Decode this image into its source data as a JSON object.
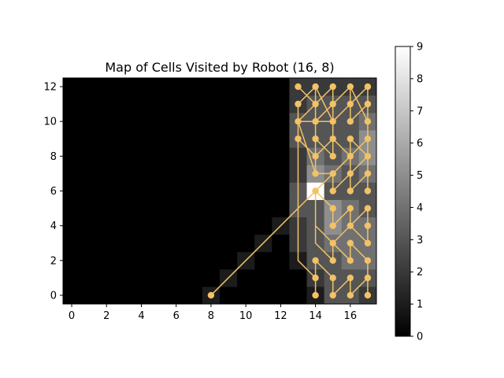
{
  "chart_data": {
    "type": "heatmap",
    "title": "Map of Cells Visited by Robot (16, 8)",
    "xlabel": "",
    "ylabel": "",
    "xlim": [
      -0.5,
      17.5
    ],
    "ylim": [
      -0.5,
      12.5
    ],
    "x_ticks": [
      0,
      2,
      4,
      6,
      8,
      10,
      12,
      14,
      16
    ],
    "y_ticks": [
      0,
      2,
      4,
      6,
      8,
      10,
      12
    ],
    "colorbar": {
      "min": 0,
      "max": 9,
      "ticks": [
        0,
        1,
        2,
        3,
        4,
        5,
        6,
        7,
        8,
        9
      ],
      "colormap": "gray"
    },
    "grid": false,
    "rows": 13,
    "cols": 18,
    "values": [
      [
        0,
        0,
        0,
        0,
        0,
        0,
        0,
        0,
        1,
        0,
        0,
        0,
        0,
        0,
        1,
        3,
        3,
        2
      ],
      [
        0,
        0,
        0,
        0,
        0,
        0,
        0,
        0,
        0,
        1,
        0,
        0,
        0,
        0,
        2,
        3,
        3,
        3
      ],
      [
        0,
        0,
        0,
        0,
        0,
        0,
        0,
        0,
        0,
        0,
        1,
        0,
        0,
        1,
        3,
        3,
        4,
        4
      ],
      [
        0,
        0,
        0,
        0,
        0,
        0,
        0,
        0,
        0,
        0,
        0,
        1,
        0,
        2,
        3,
        4,
        4,
        4
      ],
      [
        0,
        0,
        0,
        0,
        0,
        0,
        0,
        0,
        0,
        0,
        0,
        0,
        1,
        2,
        3,
        5,
        4,
        4
      ],
      [
        0,
        0,
        0,
        0,
        0,
        0,
        0,
        0,
        0,
        0,
        0,
        0,
        0,
        3,
        3,
        5,
        4,
        3
      ],
      [
        0,
        0,
        0,
        0,
        0,
        0,
        0,
        0,
        0,
        0,
        0,
        0,
        0,
        3,
        9,
        3,
        3,
        3
      ],
      [
        0,
        0,
        0,
        0,
        0,
        0,
        0,
        0,
        0,
        0,
        0,
        0,
        0,
        2,
        5,
        4,
        3,
        4
      ],
      [
        0,
        0,
        0,
        0,
        0,
        0,
        0,
        0,
        0,
        0,
        0,
        0,
        0,
        2,
        4,
        3,
        4,
        5
      ],
      [
        0,
        0,
        0,
        0,
        0,
        0,
        0,
        0,
        0,
        0,
        0,
        0,
        0,
        3,
        3,
        3,
        3,
        5
      ],
      [
        0,
        0,
        0,
        0,
        0,
        0,
        0,
        0,
        0,
        0,
        0,
        0,
        0,
        3,
        3,
        3,
        3,
        4
      ],
      [
        0,
        0,
        0,
        0,
        0,
        0,
        0,
        0,
        0,
        0,
        0,
        0,
        0,
        2,
        3,
        3,
        3,
        3
      ],
      [
        0,
        0,
        0,
        0,
        0,
        0,
        0,
        0,
        0,
        0,
        0,
        0,
        0,
        2,
        2,
        2,
        2,
        2
      ]
    ],
    "path_color": "#f2c266",
    "path": [
      [
        8,
        0
      ],
      [
        17,
        9
      ],
      [
        17,
        12
      ],
      [
        16,
        11
      ],
      [
        16,
        12
      ],
      [
        15,
        11
      ],
      [
        15,
        12
      ],
      [
        14,
        11
      ],
      [
        14,
        12
      ],
      [
        13,
        11
      ],
      [
        13,
        10
      ],
      [
        13,
        9
      ],
      [
        13,
        2
      ],
      [
        14,
        1
      ],
      [
        14,
        0
      ],
      [
        14,
        2
      ],
      [
        15,
        1
      ],
      [
        15,
        0
      ],
      [
        16,
        1
      ],
      [
        16,
        0
      ],
      [
        17,
        1
      ],
      [
        17,
        0
      ],
      [
        17,
        2
      ],
      [
        16,
        3
      ],
      [
        16,
        2
      ],
      [
        15,
        3
      ],
      [
        15,
        2
      ],
      [
        14,
        3
      ],
      [
        14,
        6
      ],
      [
        15,
        5
      ],
      [
        15,
        4
      ],
      [
        16,
        5
      ],
      [
        16,
        4
      ],
      [
        17,
        5
      ],
      [
        17,
        4
      ],
      [
        17,
        3
      ],
      [
        16,
        4
      ],
      [
        15,
        3
      ],
      [
        14,
        4
      ],
      [
        14,
        6
      ],
      [
        15,
        7
      ],
      [
        15,
        6
      ],
      [
        16,
        7
      ],
      [
        16,
        6
      ],
      [
        17,
        7
      ],
      [
        17,
        6
      ],
      [
        17,
        8
      ],
      [
        16,
        9
      ],
      [
        16,
        8
      ],
      [
        15,
        9
      ],
      [
        15,
        8
      ],
      [
        14,
        9
      ],
      [
        14,
        8
      ],
      [
        13,
        9
      ],
      [
        13,
        10
      ],
      [
        14,
        11
      ],
      [
        14,
        10
      ],
      [
        15,
        11
      ],
      [
        15,
        10
      ],
      [
        16,
        11
      ],
      [
        16,
        10
      ],
      [
        17,
        11
      ],
      [
        17,
        10
      ],
      [
        16,
        12
      ],
      [
        15,
        11
      ],
      [
        15,
        10
      ],
      [
        14,
        12
      ],
      [
        14,
        11
      ],
      [
        13,
        12
      ],
      [
        14,
        11
      ],
      [
        14,
        7
      ],
      [
        13,
        10
      ],
      [
        14,
        10
      ],
      [
        15,
        10
      ],
      [
        15,
        9
      ],
      [
        14,
        8
      ],
      [
        14,
        7
      ],
      [
        15,
        7
      ],
      [
        16,
        8
      ],
      [
        16,
        7
      ],
      [
        17,
        8
      ],
      [
        17,
        9
      ]
    ],
    "markers": [
      [
        8,
        0
      ],
      [
        13,
        12
      ],
      [
        14,
        12
      ],
      [
        15,
        12
      ],
      [
        16,
        12
      ],
      [
        17,
        12
      ],
      [
        13,
        11
      ],
      [
        14,
        11
      ],
      [
        15,
        11
      ],
      [
        16,
        11
      ],
      [
        17,
        11
      ],
      [
        13,
        10
      ],
      [
        14,
        10
      ],
      [
        15,
        10
      ],
      [
        16,
        10
      ],
      [
        17,
        10
      ],
      [
        13,
        9
      ],
      [
        14,
        9
      ],
      [
        15,
        9
      ],
      [
        16,
        9
      ],
      [
        17,
        9
      ],
      [
        14,
        8
      ],
      [
        15,
        8
      ],
      [
        16,
        8
      ],
      [
        17,
        8
      ],
      [
        14,
        7
      ],
      [
        15,
        7
      ],
      [
        16,
        7
      ],
      [
        17,
        7
      ],
      [
        14,
        6
      ],
      [
        15,
        6
      ],
      [
        16,
        6
      ],
      [
        17,
        6
      ],
      [
        15,
        5
      ],
      [
        16,
        5
      ],
      [
        17,
        5
      ],
      [
        15,
        4
      ],
      [
        16,
        4
      ],
      [
        17,
        4
      ],
      [
        15,
        3
      ],
      [
        16,
        3
      ],
      [
        17,
        3
      ],
      [
        14,
        2
      ],
      [
        15,
        2
      ],
      [
        16,
        2
      ],
      [
        17,
        2
      ],
      [
        14,
        1
      ],
      [
        15,
        1
      ],
      [
        16,
        1
      ],
      [
        17,
        1
      ],
      [
        14,
        0
      ],
      [
        15,
        0
      ],
      [
        16,
        0
      ],
      [
        17,
        0
      ]
    ]
  }
}
